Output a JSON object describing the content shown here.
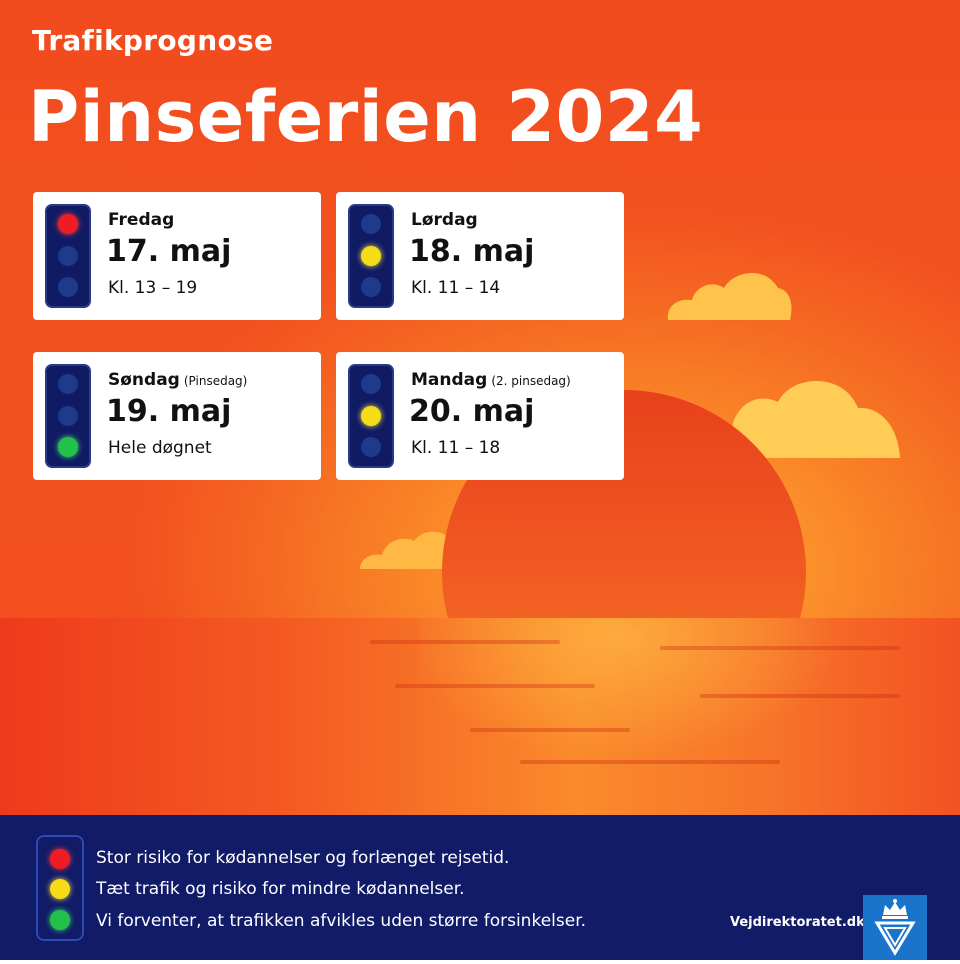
{
  "header": {
    "subtitle": "Trafikprognose",
    "title": "Pinseferien 2024"
  },
  "cards": [
    {
      "day": "Fredag",
      "note": "",
      "date": "17. maj",
      "time": "Kl. 13 – 19",
      "light": "red"
    },
    {
      "day": "Lørdag",
      "note": "",
      "date": "18. maj",
      "time": "Kl. 11 – 14",
      "light": "yellow"
    },
    {
      "day": "Søndag",
      "note": "(Pinsedag)",
      "date": "19. maj",
      "time": "Hele døgnet",
      "light": "green"
    },
    {
      "day": "Mandag",
      "note": "(2. pinsedag)",
      "date": "20. maj",
      "time": "Kl. 11 – 18",
      "light": "yellow"
    }
  ],
  "legend": [
    {
      "color": "red",
      "text": "Stor risiko for kødannelser og forlænget rejsetid."
    },
    {
      "color": "yellow",
      "text": "Tæt trafik og risiko for mindre kødannelser."
    },
    {
      "color": "green",
      "text": "Vi forventer, at trafikken afvikles uden større forsinkelser."
    }
  ],
  "footer": {
    "site": "Vejdirektoratet.dk",
    "logo_icon": "crown-v-logo-icon"
  },
  "colors": {
    "background": "#f56a22",
    "footer": "#111b68",
    "red": "#ef1c24",
    "yellow": "#f6dc16",
    "green": "#22c24a"
  }
}
